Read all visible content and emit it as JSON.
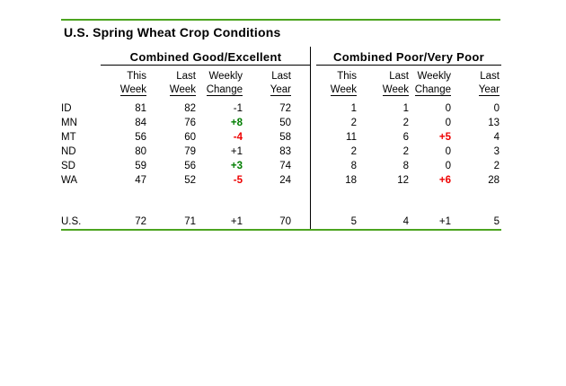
{
  "title": "U.S. Spring Wheat Crop Conditions",
  "sections": {
    "left": {
      "header": "Combined Good/Excellent"
    },
    "right": {
      "header": "Combined Poor/Very Poor"
    }
  },
  "columns": {
    "top": [
      "This",
      "Last",
      "Weekly",
      "Last"
    ],
    "bottom": [
      "Week",
      "Week",
      "Change",
      "Year"
    ]
  },
  "rows": [
    {
      "label": "ID",
      "ge": {
        "this": "81",
        "last": "82",
        "change": "-1",
        "change_color": "neutral",
        "year": "72"
      },
      "pvp": {
        "this": "1",
        "last": "1",
        "change": "0",
        "change_color": "neutral",
        "year": "0"
      }
    },
    {
      "label": "MN",
      "ge": {
        "this": "84",
        "last": "76",
        "change": "+8",
        "change_color": "green",
        "year": "50"
      },
      "pvp": {
        "this": "2",
        "last": "2",
        "change": "0",
        "change_color": "neutral",
        "year": "13"
      }
    },
    {
      "label": "MT",
      "ge": {
        "this": "56",
        "last": "60",
        "change": "-4",
        "change_color": "red",
        "year": "58"
      },
      "pvp": {
        "this": "11",
        "last": "6",
        "change": "+5",
        "change_color": "red",
        "year": "4"
      }
    },
    {
      "label": "ND",
      "ge": {
        "this": "80",
        "last": "79",
        "change": "+1",
        "change_color": "neutral",
        "year": "83"
      },
      "pvp": {
        "this": "2",
        "last": "2",
        "change": "0",
        "change_color": "neutral",
        "year": "3"
      }
    },
    {
      "label": "SD",
      "ge": {
        "this": "59",
        "last": "56",
        "change": "+3",
        "change_color": "green",
        "year": "74"
      },
      "pvp": {
        "this": "8",
        "last": "8",
        "change": "0",
        "change_color": "neutral",
        "year": "2"
      }
    },
    {
      "label": "WA",
      "ge": {
        "this": "47",
        "last": "52",
        "change": "-5",
        "change_color": "red",
        "year": "24"
      },
      "pvp": {
        "this": "18",
        "last": "12",
        "change": "+6",
        "change_color": "red",
        "year": "28"
      }
    },
    {
      "label": "U.S.",
      "ge": {
        "this": "72",
        "last": "71",
        "change": "+1",
        "change_color": "neutral",
        "year": "70"
      },
      "pvp": {
        "this": "5",
        "last": "4",
        "change": "+1",
        "change_color": "neutral",
        "year": "5"
      }
    }
  ],
  "colors": {
    "accent_rule_green": "#4ca41f",
    "change_positive_green": "#007d00",
    "change_negative_red": "#ee0000"
  }
}
